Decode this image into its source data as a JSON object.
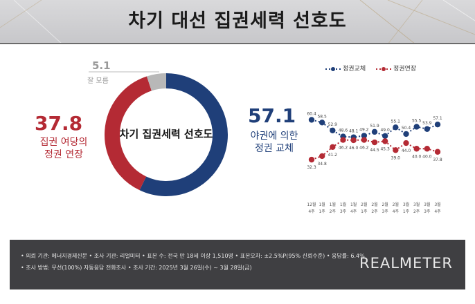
{
  "title": "차기 대선 집권세력 선호도",
  "donut": {
    "center_label": "차기 집권세력 선호도",
    "segments": [
      {
        "label_lines": [
          "야권에 의한",
          "정권 교체"
        ],
        "value": 57.1,
        "color": "#1f3f79"
      },
      {
        "label_lines": [
          "집권 여당의",
          "정권 연장"
        ],
        "value": 37.8,
        "color": "#b42a34"
      },
      {
        "label_lines": [
          "잘 모름"
        ],
        "value": 5.1,
        "color": "#b8b8b8"
      }
    ],
    "value_texts": {
      "change": "57.1",
      "extend": "37.8",
      "unsure": "5.1"
    }
  },
  "chart_data": {
    "type": "line",
    "categories": [
      "12월 4주",
      "1월 1주",
      "1월 2주",
      "1월 3주",
      "1월 4주",
      "2월 1주",
      "2월 2주",
      "2월 3주",
      "2월 4주",
      "3월 1주",
      "3월 2주",
      "3월 3주",
      "3월 4주"
    ],
    "series": [
      {
        "name": "정권교체",
        "color": "#1f3f79",
        "values": [
          60.4,
          58.5,
          52.9,
          48.6,
          48.1,
          49.2,
          51.9,
          49.0,
          55.1,
          50.4,
          55.5,
          53.9,
          57.1
        ]
      },
      {
        "name": "정권연장",
        "color": "#b42a34",
        "values": [
          32.3,
          34.8,
          41.2,
          46.2,
          46.0,
          46.2,
          44.5,
          45.3,
          39.0,
          44.0,
          40.0,
          40.0,
          37.8
        ]
      }
    ],
    "ylim": [
      25,
      65
    ]
  },
  "footer": {
    "line1": "• 의뢰 기관: 에너지경제신문 • 조사 기관: 리얼미터 • 표본 수: 전국 만 18세 이상 1,510명 • 표본오차: ±2.5%P(95% 신뢰수준) • 응답률: 6.4%",
    "line2": "• 조사 방법: 무선(100%) 자동응답 전화조사 • 조사 기간: 2025년 3월 26일(수) ~ 3월 28일(금)",
    "brand": "REALMETER"
  }
}
